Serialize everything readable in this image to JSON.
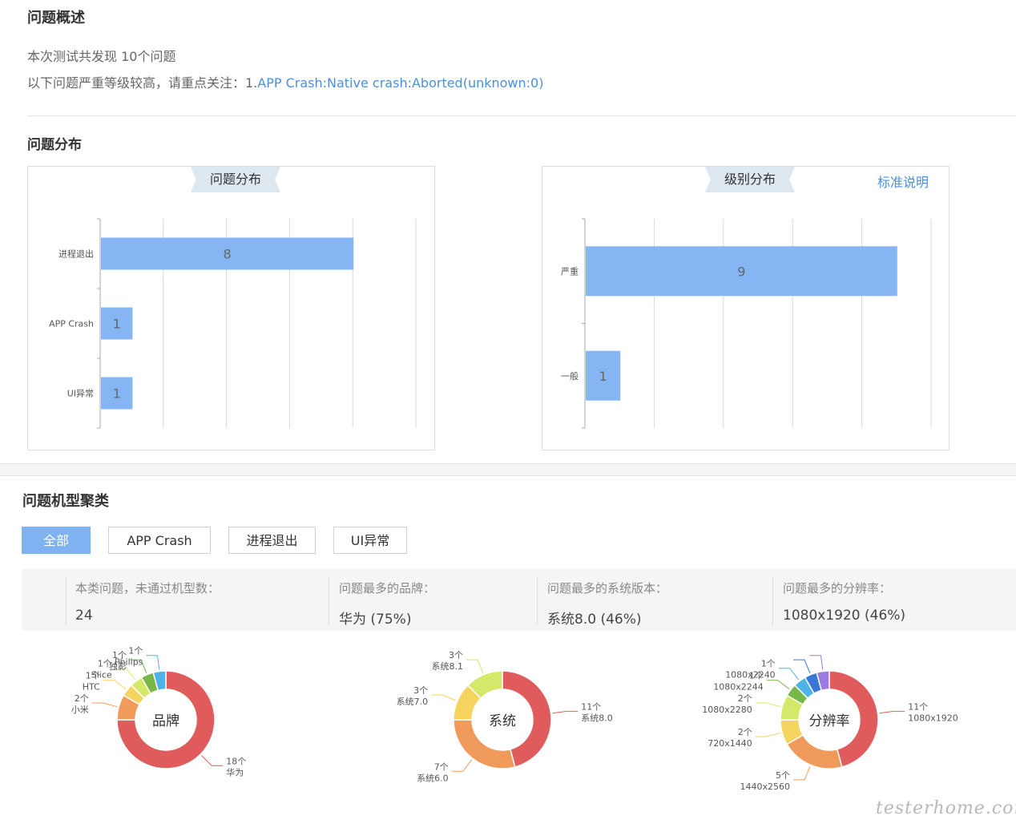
{
  "overview": {
    "title": "问题概述",
    "summary_line": "本次测试共发现 10个问题",
    "severity_prefix": "以下问题严重等级较高，请重点关注：1.",
    "severity_link": "APP Crash:Native crash:Aborted(unknown:0)"
  },
  "distribution": {
    "title": "问题分布",
    "issue_chart": {
      "ribbon": "问题分布",
      "chart_data": {
        "type": "bar",
        "orientation": "horizontal",
        "title": "问题分布",
        "categories": [
          "进程退出",
          "APP Crash",
          "UI异常"
        ],
        "values": [
          8,
          1,
          1
        ],
        "xlim": [
          0,
          10
        ],
        "grid": true,
        "color": "#85b5f2"
      }
    },
    "level_chart": {
      "ribbon": "级别分布",
      "standard_link": "标准说明",
      "chart_data": {
        "type": "bar",
        "orientation": "horizontal",
        "title": "级别分布",
        "categories": [
          "严重",
          "一般"
        ],
        "values": [
          9,
          1
        ],
        "xlim": [
          0,
          10
        ],
        "grid": true,
        "color": "#85b5f2"
      }
    }
  },
  "cluster": {
    "title": "问题机型聚类",
    "tabs": [
      {
        "label": "全部",
        "active": true
      },
      {
        "label": "APP Crash",
        "active": false
      },
      {
        "label": "进程退出",
        "active": false
      },
      {
        "label": "UI异常",
        "active": false
      }
    ],
    "stats": [
      {
        "label": "本类问题，未通过机型数：",
        "value": "24"
      },
      {
        "label": "问题最多的品牌：",
        "value": "华为 (75%)"
      },
      {
        "label": "问题最多的系统版本：",
        "value": "系统8.0 (46%)"
      },
      {
        "label": "问题最多的分辨率：",
        "value": "1080x1920 (46%)"
      }
    ],
    "donuts": [
      {
        "center_label": "品牌",
        "chart_data": {
          "type": "pie",
          "title": "品牌",
          "slices": [
            {
              "name": "华为",
              "value": 18,
              "count": "18个",
              "color": "#e05c5c"
            },
            {
              "name": "小米",
              "value": 2,
              "count": "2个",
              "color": "#f09a5c"
            },
            {
              "name": "HTC",
              "value": 1,
              "count": "1个",
              "color": "#f4d35e"
            },
            {
              "name": "Slice",
              "value": 1,
              "count": "1个",
              "color": "#d6e86a"
            },
            {
              "name": "独影",
              "value": 1,
              "count": "1个",
              "color": "#78b84a"
            },
            {
              "name": "Philips",
              "value": 1,
              "count": "1个",
              "color": "#4fb3e8"
            }
          ]
        }
      },
      {
        "center_label": "系统",
        "chart_data": {
          "type": "pie",
          "title": "系统",
          "slices": [
            {
              "name": "系统8.0",
              "value": 11,
              "count": "11个",
              "color": "#e05c5c"
            },
            {
              "name": "系统6.0",
              "value": 7,
              "count": "7个",
              "color": "#f09a5c"
            },
            {
              "name": "系统7.0",
              "value": 3,
              "count": "3个",
              "color": "#f4d35e"
            },
            {
              "name": "系统8.1",
              "value": 3,
              "count": "3个",
              "color": "#d6e86a"
            }
          ]
        }
      },
      {
        "center_label": "分辨率",
        "chart_data": {
          "type": "pie",
          "title": "分辨率",
          "slices": [
            {
              "name": "1080x1920",
              "value": 11,
              "count": "11个",
              "color": "#e05c5c"
            },
            {
              "name": "1440x2560",
              "value": 5,
              "count": "5个",
              "color": "#f09a5c"
            },
            {
              "name": "720x1440",
              "value": 2,
              "count": "2个",
              "color": "#f4d35e"
            },
            {
              "name": "1080x2280",
              "value": 2,
              "count": "2个",
              "color": "#d6e86a"
            },
            {
              "name": "1080x2244",
              "value": 1,
              "count": "1个",
              "color": "#78b84a"
            },
            {
              "name": "1080x2240",
              "value": 1,
              "count": "1个",
              "color": "#4fb3e8"
            },
            {
              "name": "",
              "value": 1,
              "count": "",
              "color": "#3a78d8"
            },
            {
              "name": "",
              "value": 1,
              "count": "",
              "color": "#9b7be0"
            }
          ]
        }
      }
    ]
  },
  "watermark": "testerhome.com"
}
